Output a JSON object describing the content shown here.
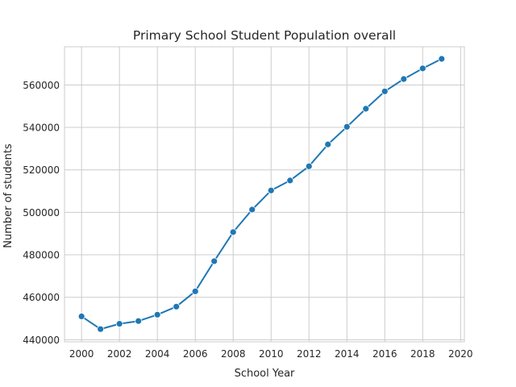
{
  "chart_data": {
    "type": "line",
    "title": "Primary School Student Population overall",
    "xlabel": "School Year",
    "ylabel": "Number of students",
    "xlim": [
      1999.1,
      2020.2
    ],
    "ylim": [
      439000,
      578000
    ],
    "xticks": [
      2000,
      2002,
      2004,
      2006,
      2008,
      2010,
      2012,
      2014,
      2016,
      2018,
      2020
    ],
    "yticks": [
      440000,
      460000,
      480000,
      500000,
      520000,
      540000,
      560000
    ],
    "ytick_labels": [
      "440000",
      "460000",
      "480000",
      "500000",
      "520000",
      "540000",
      "560000"
    ],
    "grid": true,
    "x": [
      2000,
      2001,
      2002,
      2003,
      2004,
      2005,
      2006,
      2007,
      2008,
      2009,
      2010,
      2011,
      2012,
      2013,
      2014,
      2015,
      2016,
      2017,
      2018,
      2019
    ],
    "series": [
      {
        "color": "#1f77b4",
        "marker": "circle",
        "values": [
          451000,
          445000,
          447500,
          448800,
          451800,
          455600,
          462800,
          477000,
          490700,
          501300,
          510300,
          515000,
          521700,
          532000,
          540300,
          548800,
          557000,
          562800,
          567800,
          572300
        ]
      }
    ]
  }
}
